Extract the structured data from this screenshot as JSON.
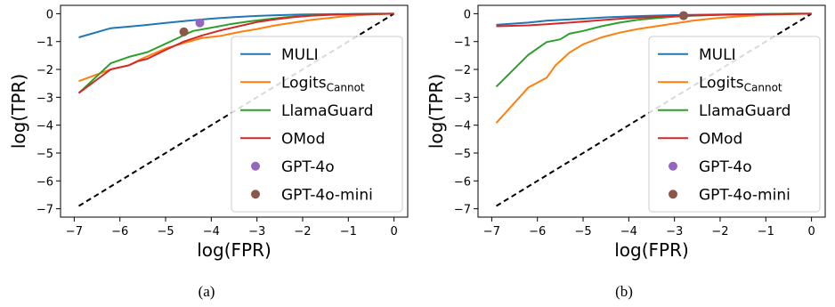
{
  "chart_data": [
    {
      "type": "line",
      "caption": "(a)",
      "xlabel": "log(FPR)",
      "ylabel": "log(TPR)",
      "xlim": [
        -7.3,
        0.3
      ],
      "ylim": [
        -7.3,
        0.3
      ],
      "xticks": [
        -7,
        -6,
        -5,
        -4,
        -3,
        -2,
        -1,
        0
      ],
      "yticks": [
        0,
        -1,
        -2,
        -3,
        -4,
        -5,
        -6,
        -7
      ],
      "grid": false,
      "legend_position": "lower right",
      "reference_line": {
        "x": [
          -6.9,
          0
        ],
        "y": [
          -6.9,
          0
        ],
        "color": "#000000",
        "style": "dashed"
      },
      "series": [
        {
          "name": "MULI",
          "color": "#1f77b4",
          "x": [
            -6.9,
            -6.2,
            -5.5,
            -5.0,
            -4.5,
            -4.0,
            -3.5,
            -3.0,
            -2.5,
            -2.0,
            -1.5,
            -1.0,
            -0.5,
            0
          ],
          "y": [
            -0.85,
            -0.52,
            -0.42,
            -0.33,
            -0.25,
            -0.18,
            -0.12,
            -0.08,
            -0.05,
            -0.03,
            -0.02,
            -0.01,
            0.0,
            0
          ]
        },
        {
          "name": "Logits",
          "name_sub": "Cannot",
          "color": "#ff7f0e",
          "x": [
            -6.9,
            -6.2,
            -5.8,
            -5.5,
            -5.0,
            -4.6,
            -4.2,
            -3.8,
            -3.4,
            -3.0,
            -2.6,
            -2.2,
            -1.8,
            -1.4,
            -1.0,
            -0.5,
            0
          ],
          "y": [
            -2.42,
            -2.0,
            -1.85,
            -1.6,
            -1.25,
            -1.05,
            -0.87,
            -0.8,
            -0.66,
            -0.55,
            -0.42,
            -0.32,
            -0.22,
            -0.15,
            -0.08,
            -0.03,
            0
          ]
        },
        {
          "name": "LlamaGuard",
          "color": "#2ca02c",
          "x": [
            -6.9,
            -6.2,
            -5.8,
            -5.4,
            -5.0,
            -4.7,
            -4.4,
            -4.0,
            -3.6,
            -3.2,
            -2.8,
            -2.4,
            -2.0,
            -1.5,
            -1.0,
            -0.5,
            0
          ],
          "y": [
            -2.85,
            -1.78,
            -1.55,
            -1.38,
            -1.08,
            -0.85,
            -0.62,
            -0.5,
            -0.38,
            -0.28,
            -0.2,
            -0.13,
            -0.08,
            -0.04,
            -0.02,
            -0.01,
            0
          ]
        },
        {
          "name": "OMod",
          "color": "#d62728",
          "x": [
            -6.9,
            -6.2,
            -5.8,
            -5.6,
            -5.4,
            -5.0,
            -4.6,
            -4.2,
            -3.8,
            -3.4,
            -3.0,
            -2.6,
            -2.2,
            -1.8,
            -1.4,
            -1.0,
            -0.5,
            0
          ],
          "y": [
            -2.85,
            -2.0,
            -1.85,
            -1.7,
            -1.62,
            -1.3,
            -1.0,
            -0.78,
            -0.6,
            -0.45,
            -0.3,
            -0.2,
            -0.12,
            -0.07,
            -0.04,
            -0.02,
            -0.01,
            0
          ]
        },
        {
          "name": "GPT-4o",
          "color": "#9467bd",
          "marker": "point",
          "x": [
            -4.25
          ],
          "y": [
            -0.33
          ]
        },
        {
          "name": "GPT-4o-mini",
          "color": "#8c564b",
          "marker": "point",
          "x": [
            -4.6
          ],
          "y": [
            -0.65
          ]
        }
      ]
    },
    {
      "type": "line",
      "caption": "(b)",
      "xlabel": "log(FPR)",
      "ylabel": "log(TPR)",
      "xlim": [
        -7.3,
        0.3
      ],
      "ylim": [
        -7.3,
        0.3
      ],
      "xticks": [
        -7,
        -6,
        -5,
        -4,
        -3,
        -2,
        -1,
        0
      ],
      "yticks": [
        0,
        -1,
        -2,
        -3,
        -4,
        -5,
        -6,
        -7
      ],
      "grid": false,
      "legend_position": "lower right",
      "reference_line": {
        "x": [
          -6.9,
          0
        ],
        "y": [
          -6.9,
          0
        ],
        "color": "#000000",
        "style": "dashed"
      },
      "series": [
        {
          "name": "MULI",
          "color": "#1f77b4",
          "x": [
            -6.9,
            -6.2,
            -5.8,
            -5.0,
            -4.5,
            -4.0,
            -3.5,
            -3.0,
            -2.5,
            -2.0,
            -1.5,
            -1.0,
            -0.5,
            0
          ],
          "y": [
            -0.4,
            -0.32,
            -0.25,
            -0.18,
            -0.13,
            -0.1,
            -0.07,
            -0.05,
            -0.04,
            -0.03,
            -0.02,
            -0.01,
            0.0,
            0
          ]
        },
        {
          "name": "Logits",
          "name_sub": "Cannot",
          "color": "#ff7f0e",
          "x": [
            -6.9,
            -6.2,
            -5.8,
            -5.6,
            -5.3,
            -5.0,
            -4.6,
            -4.2,
            -3.8,
            -3.4,
            -3.0,
            -2.6,
            -2.2,
            -1.8,
            -1.4,
            -1.0,
            -0.5,
            0
          ],
          "y": [
            -3.92,
            -2.65,
            -2.3,
            -1.85,
            -1.4,
            -1.1,
            -0.85,
            -0.68,
            -0.55,
            -0.45,
            -0.35,
            -0.25,
            -0.18,
            -0.12,
            -0.08,
            -0.04,
            -0.02,
            0
          ]
        },
        {
          "name": "LlamaGuard",
          "color": "#2ca02c",
          "x": [
            -6.9,
            -6.2,
            -5.8,
            -5.5,
            -5.3,
            -5.0,
            -4.6,
            -4.2,
            -3.8,
            -3.4,
            -3.0,
            -2.6,
            -2.2,
            -1.8,
            -1.4,
            -1.0,
            -0.5,
            0
          ],
          "y": [
            -2.62,
            -1.48,
            -1.02,
            -0.92,
            -0.72,
            -0.62,
            -0.45,
            -0.32,
            -0.22,
            -0.16,
            -0.11,
            -0.07,
            -0.05,
            -0.03,
            -0.02,
            -0.01,
            0.0,
            0
          ]
        },
        {
          "name": "OMod",
          "color": "#d62728",
          "x": [
            -6.9,
            -6.2,
            -5.8,
            -5.0,
            -4.5,
            -4.0,
            -3.5,
            -3.0,
            -2.5,
            -2.0,
            -1.5,
            -1.0,
            -0.5,
            0
          ],
          "y": [
            -0.45,
            -0.42,
            -0.38,
            -0.28,
            -0.22,
            -0.16,
            -0.12,
            -0.08,
            -0.06,
            -0.04,
            -0.03,
            -0.02,
            -0.01,
            0
          ]
        },
        {
          "name": "GPT-4o",
          "color": "#9467bd",
          "marker": "point",
          "x": [
            -2.8
          ],
          "y": [
            -0.07
          ]
        },
        {
          "name": "GPT-4o-mini",
          "color": "#8c564b",
          "marker": "point",
          "x": [
            -2.8
          ],
          "y": [
            -0.07
          ]
        }
      ]
    }
  ]
}
